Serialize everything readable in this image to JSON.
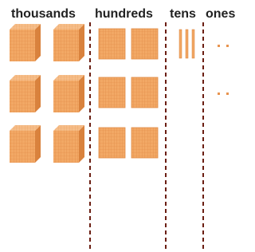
{
  "columns": [
    {
      "label": "thousands"
    },
    {
      "label": "hundreds"
    },
    {
      "label": "tens"
    },
    {
      "label": "ones"
    }
  ]
}
